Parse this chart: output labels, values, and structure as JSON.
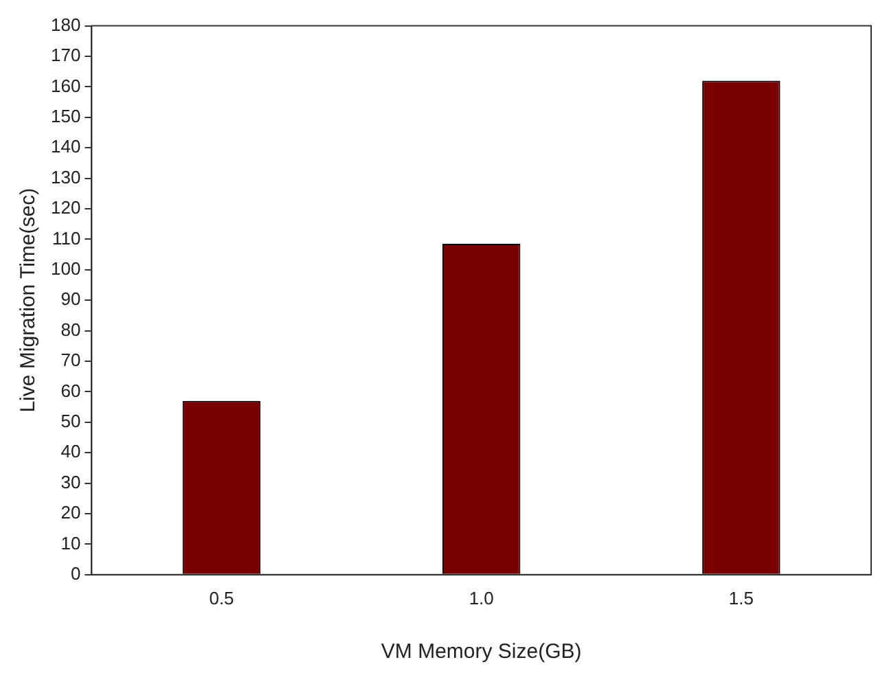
{
  "chart_data": {
    "type": "bar",
    "xlabel": "VM Memory Size(GB)",
    "ylabel": "Live Migration Time(sec)",
    "categories": [
      "0.5",
      "1.0",
      "1.5"
    ],
    "values": [
      57,
      108.5,
      162
    ],
    "color": "#7a0000",
    "ylim": [
      0,
      180
    ],
    "yticks": [
      0,
      10,
      20,
      30,
      40,
      50,
      60,
      70,
      80,
      90,
      100,
      110,
      120,
      130,
      140,
      150,
      160,
      170,
      180
    ],
    "grid": false,
    "legend": false
  }
}
